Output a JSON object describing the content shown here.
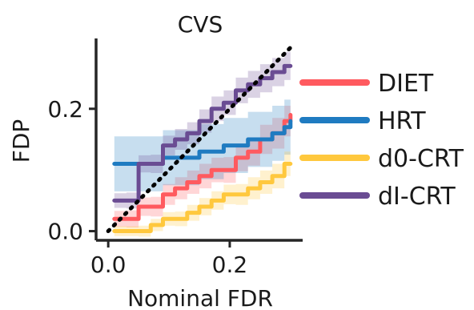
{
  "chart_data": {
    "type": "line",
    "title": "CVS",
    "xlabel": "Nominal FDR",
    "ylabel": "FDP",
    "xlim": [
      -0.02,
      0.32
    ],
    "ylim": [
      -0.015,
      0.315
    ],
    "xticks": [
      {
        "value": 0.0,
        "label": "0.0"
      },
      {
        "value": 0.2,
        "label": "0.2"
      }
    ],
    "yticks": [
      {
        "value": 0.0,
        "label": "0.0"
      },
      {
        "value": 0.2,
        "label": "0.2"
      }
    ],
    "grid": false,
    "legend_position": "right",
    "reference_line": {
      "style": "dotted",
      "color": "#000000",
      "from": [
        0.0,
        0.0
      ],
      "to": [
        0.3,
        0.3
      ]
    },
    "series": [
      {
        "name": "DIET",
        "color": "#ff5a5f",
        "x": [
          0.01,
          0.03,
          0.05,
          0.07,
          0.09,
          0.11,
          0.13,
          0.15,
          0.17,
          0.19,
          0.21,
          0.23,
          0.25,
          0.27,
          0.29,
          0.3
        ],
        "y": [
          0.02,
          0.02,
          0.04,
          0.04,
          0.06,
          0.07,
          0.08,
          0.09,
          0.1,
          0.1,
          0.12,
          0.13,
          0.15,
          0.16,
          0.18,
          0.19
        ],
        "band": [
          0.013,
          0.014,
          0.015,
          0.016,
          0.017,
          0.018,
          0.019,
          0.02,
          0.02,
          0.021,
          0.022,
          0.023,
          0.024,
          0.025,
          0.025,
          0.025
        ]
      },
      {
        "name": "HRT",
        "color": "#1f7bc1",
        "x": [
          0.01,
          0.03,
          0.05,
          0.07,
          0.09,
          0.11,
          0.13,
          0.15,
          0.17,
          0.19,
          0.21,
          0.23,
          0.25,
          0.27,
          0.29,
          0.3
        ],
        "y": [
          0.11,
          0.11,
          0.11,
          0.11,
          0.12,
          0.12,
          0.12,
          0.13,
          0.13,
          0.14,
          0.14,
          0.15,
          0.15,
          0.16,
          0.17,
          0.18
        ],
        "band": [
          0.045,
          0.045,
          0.045,
          0.045,
          0.045,
          0.045,
          0.045,
          0.045,
          0.045,
          0.045,
          0.045,
          0.045,
          0.045,
          0.045,
          0.045,
          0.045
        ]
      },
      {
        "name": "d0-CRT",
        "color": "#ffc83d",
        "x": [
          0.01,
          0.03,
          0.05,
          0.07,
          0.09,
          0.11,
          0.13,
          0.15,
          0.17,
          0.19,
          0.21,
          0.23,
          0.25,
          0.27,
          0.29,
          0.3
        ],
        "y": [
          0.0,
          0.0,
          0.0,
          0.01,
          0.02,
          0.02,
          0.03,
          0.04,
          0.05,
          0.06,
          0.06,
          0.07,
          0.08,
          0.09,
          0.11,
          0.11
        ],
        "band": [
          0.008,
          0.008,
          0.009,
          0.01,
          0.011,
          0.012,
          0.013,
          0.014,
          0.015,
          0.016,
          0.017,
          0.018,
          0.019,
          0.02,
          0.02,
          0.02
        ]
      },
      {
        "name": "dI-CRT",
        "color": "#6a4c93",
        "x": [
          0.01,
          0.03,
          0.05,
          0.07,
          0.09,
          0.11,
          0.13,
          0.15,
          0.17,
          0.19,
          0.21,
          0.23,
          0.25,
          0.27,
          0.29,
          0.3
        ],
        "y": [
          0.05,
          0.05,
          0.11,
          0.11,
          0.14,
          0.15,
          0.16,
          0.18,
          0.2,
          0.21,
          0.23,
          0.24,
          0.25,
          0.26,
          0.27,
          0.27
        ],
        "band": [
          0.012,
          0.013,
          0.014,
          0.015,
          0.016,
          0.017,
          0.018,
          0.019,
          0.02,
          0.02,
          0.021,
          0.022,
          0.023,
          0.023,
          0.023,
          0.023
        ]
      }
    ]
  }
}
